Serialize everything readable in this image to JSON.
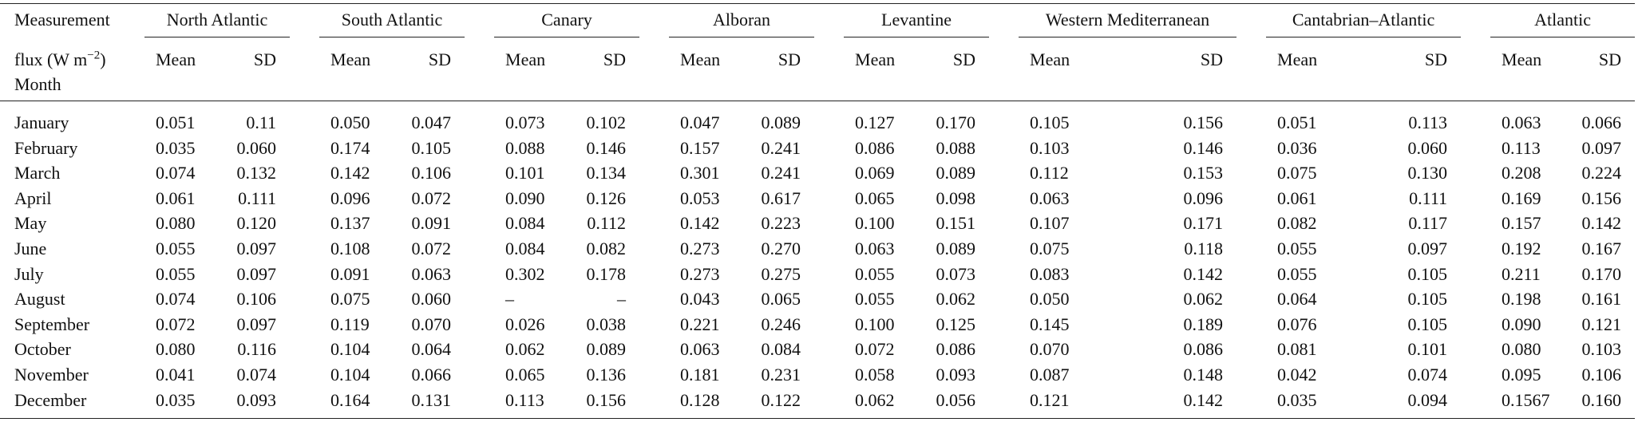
{
  "header": {
    "measurement": "Measurement",
    "unit_parts": [
      "flux (W m",
      "−2",
      ")"
    ],
    "month": "Month",
    "regions": [
      {
        "name": "North Atlantic",
        "mean": "Mean",
        "sd": "SD"
      },
      {
        "name": "South Atlantic",
        "mean": "Mean",
        "sd": "SD"
      },
      {
        "name": "Canary",
        "mean": "Mean",
        "sd": "SD"
      },
      {
        "name": "Alboran",
        "mean": "Mean",
        "sd": "SD"
      },
      {
        "name": "Levantine",
        "mean": "Mean",
        "sd": "SD"
      },
      {
        "name": "Western Mediterranean",
        "mean": "Mean",
        "sd": "SD"
      },
      {
        "name": "Cantabrian–Atlantic",
        "mean": "Mean",
        "sd": "SD"
      },
      {
        "name": "Atlantic",
        "mean": "Mean",
        "sd": "SD"
      }
    ]
  },
  "table": {
    "rows": [
      [
        "January",
        "0.051",
        "0.11",
        "0.050",
        "0.047",
        "0.073",
        "0.102",
        "0.047",
        "0.089",
        "0.127",
        "0.170",
        "0.105",
        "0.156",
        "0.051",
        "0.113",
        "0.063",
        "0.066"
      ],
      [
        "February",
        "0.035",
        "0.060",
        "0.174",
        "0.105",
        "0.088",
        "0.146",
        "0.157",
        "0.241",
        "0.086",
        "0.088",
        "0.103",
        "0.146",
        "0.036",
        "0.060",
        "0.113",
        "0.097"
      ],
      [
        "March",
        "0.074",
        "0.132",
        "0.142",
        "0.106",
        "0.101",
        "0.134",
        "0.301",
        "0.241",
        "0.069",
        "0.089",
        "0.112",
        "0.153",
        "0.075",
        "0.130",
        "0.208",
        "0.224"
      ],
      [
        "April",
        "0.061",
        "0.111",
        "0.096",
        "0.072",
        "0.090",
        "0.126",
        "0.053",
        "0.617",
        "0.065",
        "0.098",
        "0.063",
        "0.096",
        "0.061",
        "0.111",
        "0.169",
        "0.156"
      ],
      [
        "May",
        "0.080",
        "0.120",
        "0.137",
        "0.091",
        "0.084",
        "0.112",
        "0.142",
        "0.223",
        "0.100",
        "0.151",
        "0.107",
        "0.171",
        "0.082",
        "0.117",
        "0.157",
        "0.142"
      ],
      [
        "June",
        "0.055",
        "0.097",
        "0.108",
        "0.072",
        "0.084",
        "0.082",
        "0.273",
        "0.270",
        "0.063",
        "0.089",
        "0.075",
        "0.118",
        "0.055",
        "0.097",
        "0.192",
        "0.167"
      ],
      [
        "July",
        "0.055",
        "0.097",
        "0.091",
        "0.063",
        "0.302",
        "0.178",
        "0.273",
        "0.275",
        "0.055",
        "0.073",
        "0.083",
        "0.142",
        "0.055",
        "0.105",
        "0.211",
        "0.170"
      ],
      [
        "August",
        "0.074",
        "0.106",
        "0.075",
        "0.060",
        "–",
        "–",
        "0.043",
        "0.065",
        "0.055",
        "0.062",
        "0.050",
        "0.062",
        "0.064",
        "0.105",
        "0.198",
        "0.161"
      ],
      [
        "September",
        "0.072",
        "0.097",
        "0.119",
        "0.070",
        "0.026",
        "0.038",
        "0.221",
        "0.246",
        "0.100",
        "0.125",
        "0.145",
        "0.189",
        "0.076",
        "0.105",
        "0.090",
        "0.121"
      ],
      [
        "October",
        "0.080",
        "0.116",
        "0.104",
        "0.064",
        "0.062",
        "0.089",
        "0.063",
        "0.084",
        "0.072",
        "0.086",
        "0.070",
        "0.086",
        "0.081",
        "0.101",
        "0.080",
        "0.103"
      ],
      [
        "November",
        "0.041",
        "0.074",
        "0.104",
        "0.066",
        "0.065",
        "0.136",
        "0.181",
        "0.231",
        "0.058",
        "0.093",
        "0.087",
        "0.148",
        "0.042",
        "0.074",
        "0.095",
        "0.106"
      ],
      [
        "December",
        "0.035",
        "0.093",
        "0.164",
        "0.131",
        "0.113",
        "0.156",
        "0.128",
        "0.122",
        "0.062",
        "0.056",
        "0.121",
        "0.142",
        "0.035",
        "0.094",
        "0.1567",
        "0.160"
      ]
    ]
  }
}
